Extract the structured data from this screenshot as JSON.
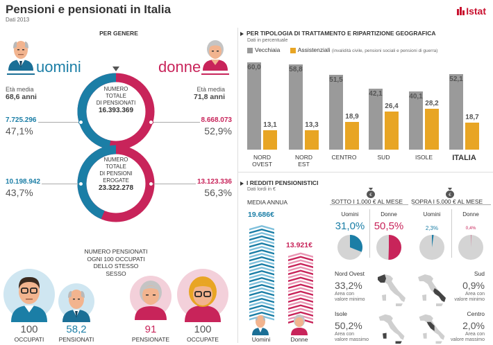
{
  "header": {
    "title": "Pensioni e pensionati in Italia",
    "subtitle": "Dati 2013",
    "logo": "Istat"
  },
  "gender": {
    "section_title": "PER GENERE",
    "men_label": "uomini",
    "women_label": "donne",
    "men_age_label": "Età media",
    "men_age": "68,6 anni",
    "women_age_label": "Età media",
    "women_age": "71,8 anni",
    "donut1": {
      "center": [
        "NUMERO",
        "TOTALE",
        "DI PENSIONATI"
      ],
      "total": "16.393.369",
      "men_value": "7.725.296",
      "men_pct": "47,1%",
      "women_value": "8.668.073",
      "women_pct": "52,9%",
      "men_fraction": 0.471
    },
    "donut2": {
      "center": [
        "NUMERO",
        "TOTALE",
        "DI PENSIONI",
        "EROGATE"
      ],
      "total": "23.322.278",
      "men_value": "10.198.942",
      "men_pct": "43,7%",
      "women_value": "13.123.336",
      "women_pct": "56,3%",
      "men_fraction": 0.437
    },
    "ratio_text": [
      "NUMERO PENSIONATI",
      "OGNI 100 OCCUPATI",
      "DELLO STESSO",
      "SESSO"
    ],
    "occupati_men_value": "100",
    "occupati_men_label": "OCCUPATI",
    "pensionati_men_value": "58,2",
    "pensionati_men_label": "PENSIONATI",
    "pensionate_women_value": "91",
    "pensionate_women_label": "PENSIONATE",
    "occupate_women_value": "100",
    "occupate_women_label": "OCCUPATE"
  },
  "typology": {
    "section_title": "PER TIPOLOGIA DI TRATTAMENTO E RIPARTIZIONE GEOGRAFICA",
    "note": "Dati in percentuale",
    "legend_vecchiaia": "Vecchiaia",
    "legend_assistenziali": "Assistenziali",
    "legend_assistenziali_note": "(invalidità civile, pensioni sociali e pensioni di guerra)",
    "colors": {
      "vecchiaia": "#9a9a9a",
      "assistenziali": "#e8a524"
    }
  },
  "chart_data": {
    "type": "bar",
    "categories": [
      "NORD OVEST",
      "NORD EST",
      "CENTRO",
      "SUD",
      "ISOLE",
      "ITALIA"
    ],
    "category_lines": [
      [
        "NORD",
        "OVEST"
      ],
      [
        "NORD",
        "EST"
      ],
      [
        "CENTRO"
      ],
      [
        "SUD"
      ],
      [
        "ISOLE"
      ],
      [
        "ITALIA"
      ]
    ],
    "series": [
      {
        "name": "Vecchiaia",
        "values": [
          60.0,
          58.8,
          51.5,
          42.1,
          40.1,
          52.1
        ],
        "labels": [
          "60,0",
          "58,8",
          "51,5",
          "42,1",
          "40,1",
          "52,1"
        ]
      },
      {
        "name": "Assistenziali",
        "values": [
          13.1,
          13.3,
          18.9,
          26.4,
          28.2,
          18.7
        ],
        "labels": [
          "13,1",
          "13,3",
          "18,9",
          "26,4",
          "28,2",
          "18,7"
        ]
      }
    ],
    "ylim": [
      0,
      60
    ]
  },
  "income": {
    "section_title": "I REDDITI PENSIONISTICI",
    "note": "Dati lordi in €",
    "media_label": "MEDIA ANNUA",
    "men_value": "19.686€",
    "women_value": "13.921€",
    "men_label": "Uomini",
    "women_label": "Donne",
    "men_fraction": 1.0,
    "women_fraction": 0.707,
    "below_title": "SOTTO I 1.000 € AL MESE",
    "above_title": "SOPRA I 5.000 € AL MESE",
    "below_men_label": "Uomini",
    "below_women_label": "Donne",
    "below_men_pct": "31,0%",
    "below_women_pct": "50,5%",
    "below_men_fraction": 0.31,
    "below_women_fraction": 0.505,
    "above_men_label": "Uomini",
    "above_women_label": "Donne",
    "above_men_pct": "2,3%",
    "above_women_pct": "0,4%",
    "above_men_fraction": 0.023,
    "above_women_fraction": 0.004,
    "below_min_region": "Nord Ovest",
    "below_min_pct": "33,2%",
    "below_min_desc": [
      "Area con",
      "valore minimo"
    ],
    "below_max_region": "Isole",
    "below_max_pct": "50,2%",
    "below_max_desc": [
      "Area con",
      "valore massimo"
    ],
    "above_min_region": "Sud",
    "above_min_pct": "0,9%",
    "above_min_desc": [
      "Area con",
      "valore minimo"
    ],
    "above_max_region": "Centro",
    "above_max_pct": "2,0%",
    "above_max_desc": [
      "Area con",
      "valore massimo"
    ],
    "colors": {
      "men": "#1b7ea6",
      "women": "#c8245a",
      "base": "#d4d4d4"
    }
  }
}
